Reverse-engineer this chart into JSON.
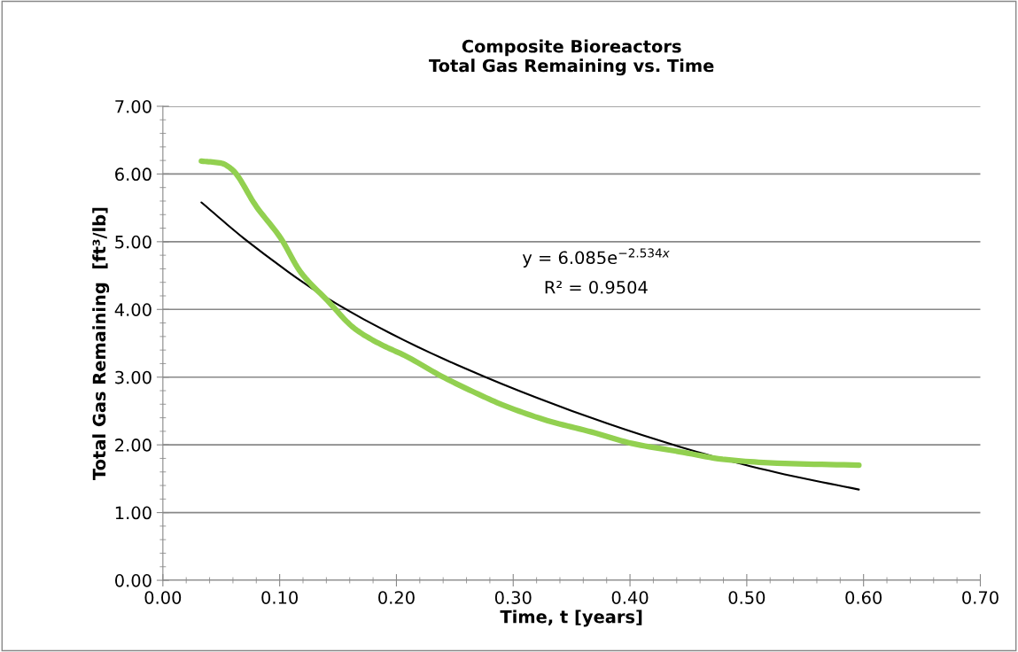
{
  "chart_data": {
    "type": "line",
    "title": "Composite Bioreactors\nTotal Gas Remaining vs. Time",
    "xlabel": "Time, t [years]",
    "ylabel": "Total Gas Remaining  [ft³/lb]",
    "xlim": [
      0,
      0.7
    ],
    "xticks": [
      {
        "value": 0,
        "label": "0.00"
      },
      {
        "value": 0.1,
        "label": "0.10"
      },
      {
        "value": 0.2,
        "label": "0.20"
      },
      {
        "value": 0.3,
        "label": "0.30"
      },
      {
        "value": 0.4,
        "label": "0.40"
      },
      {
        "value": 0.5,
        "label": "0.50"
      },
      {
        "value": 0.6,
        "label": "0.60"
      },
      {
        "value": 0.7,
        "label": "0.70"
      }
    ],
    "ylim": [
      0,
      7
    ],
    "yticks": [
      {
        "value": 0,
        "label": "0.00"
      },
      {
        "value": 1,
        "label": "1.00"
      },
      {
        "value": 2,
        "label": "2.00"
      },
      {
        "value": 3,
        "label": "3.00"
      },
      {
        "value": 4,
        "label": "4.00"
      },
      {
        "value": 5,
        "label": "5.00"
      },
      {
        "value": 6,
        "label": "6.00"
      },
      {
        "value": 7,
        "label": "7.00"
      }
    ],
    "grid": "y",
    "legend": false,
    "series": [
      {
        "color": "#92d050",
        "x": [
          0.033,
          0.05,
          0.059,
          0.08,
          0.101,
          0.118,
          0.141,
          0.164,
          0.187,
          0.207,
          0.239,
          0.265,
          0.291,
          0.329,
          0.367,
          0.402,
          0.442,
          0.483,
          0.526,
          0.596
        ],
        "values": [
          6.19,
          6.16,
          6.07,
          5.52,
          5.05,
          4.55,
          4.13,
          3.72,
          3.48,
          3.32,
          3.01,
          2.79,
          2.59,
          2.36,
          2.19,
          2.02,
          1.9,
          1.78,
          1.73,
          1.7
        ]
      },
      {
        "color": "#000000",
        "x": [
          0.033,
          0.073,
          0.149,
          0.275,
          0.441,
          0.526,
          0.596
        ],
        "values": [
          5.58,
          5.0,
          4.08,
          3.01,
          1.98,
          1.59,
          1.34
        ]
      }
    ],
    "annotations": [
      "y = 6.085e$^{−2.534x}$",
      "R² = 0.9504"
    ]
  }
}
